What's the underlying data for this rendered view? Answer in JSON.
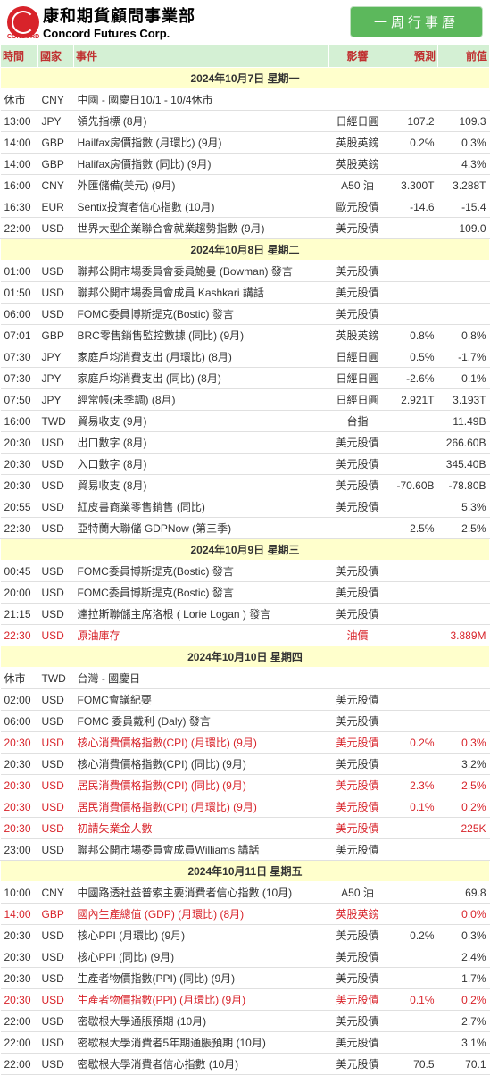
{
  "brand": {
    "cn": "康和期貨顧問事業部",
    "en": "Concord Futures Corp.",
    "sub": "CONCORD"
  },
  "badge": "一周行事曆",
  "columns": {
    "time": "時間",
    "country": "國家",
    "event": "事件",
    "impact": "影響",
    "forecast": "預測",
    "prev": "前值"
  },
  "sections": [
    {
      "date": "2024年10月7日  星期一",
      "rows": [
        {
          "t": "休市",
          "c": "CNY",
          "e": "中國 - 國慶日10/1 - 10/4休市",
          "i": "",
          "f": "",
          "p": ""
        },
        {
          "t": "13:00",
          "c": "JPY",
          "e": "領先指標 (8月)",
          "i": "日經日圓",
          "f": "107.2",
          "p": "109.3"
        },
        {
          "t": "14:00",
          "c": "GBP",
          "e": "Hailfax房價指數 (月環比) (9月)",
          "i": "英股英鎊",
          "f": "0.2%",
          "p": "0.3%"
        },
        {
          "t": "14:00",
          "c": "GBP",
          "e": "Halifax房價指數 (同比) (9月)",
          "i": "英股英鎊",
          "f": "",
          "p": "4.3%"
        },
        {
          "t": "16:00",
          "c": "CNY",
          "e": "外匯儲備(美元) (9月)",
          "i": "A50 油",
          "f": "3.300T",
          "p": "3.288T"
        },
        {
          "t": "16:30",
          "c": "EUR",
          "e": "Sentix投資者信心指數 (10月)",
          "i": "歐元股債",
          "f": "-14.6",
          "p": "-15.4"
        },
        {
          "t": "22:00",
          "c": "USD",
          "e": "世界大型企業聯合會就業趨勢指數 (9月)",
          "i": "美元股債",
          "f": "",
          "p": "109.0"
        }
      ]
    },
    {
      "date": "2024年10月8日  星期二",
      "rows": [
        {
          "t": "01:00",
          "c": "USD",
          "e": "聯邦公開市場委員會委員鮑曼 (Bowman) 發言",
          "i": "美元股債",
          "f": "",
          "p": ""
        },
        {
          "t": "01:50",
          "c": "USD",
          "e": "聯邦公開市場委員會成員 Kashkari 講話",
          "i": "美元股債",
          "f": "",
          "p": ""
        },
        {
          "t": "06:00",
          "c": "USD",
          "e": "FOMC委員博斯提克(Bostic) 發言",
          "i": "美元股債",
          "f": "",
          "p": ""
        },
        {
          "t": "07:01",
          "c": "GBP",
          "e": "BRC零售銷售監控數據 (同比) (9月)",
          "i": "英股英鎊",
          "f": "0.8%",
          "p": "0.8%"
        },
        {
          "t": "07:30",
          "c": "JPY",
          "e": "家庭戶均消費支出 (月環比) (8月)",
          "i": "日經日圓",
          "f": "0.5%",
          "p": "-1.7%"
        },
        {
          "t": "07:30",
          "c": "JPY",
          "e": "家庭戶均消費支出 (同比) (8月)",
          "i": "日經日圓",
          "f": "-2.6%",
          "p": "0.1%"
        },
        {
          "t": "07:50",
          "c": "JPY",
          "e": "經常帳(未季調) (8月)",
          "i": "日經日圓",
          "f": "2.921T",
          "p": "3.193T"
        },
        {
          "t": "16:00",
          "c": "TWD",
          "e": "貿易收支 (9月)",
          "i": "台指",
          "f": "",
          "p": "11.49B"
        },
        {
          "t": "20:30",
          "c": "USD",
          "e": "出口數字 (8月)",
          "i": "美元股債",
          "f": "",
          "p": "266.60B"
        },
        {
          "t": "20:30",
          "c": "USD",
          "e": "入口數字 (8月)",
          "i": "美元股債",
          "f": "",
          "p": "345.40B"
        },
        {
          "t": "20:30",
          "c": "USD",
          "e": "貿易收支 (8月)",
          "i": "美元股債",
          "f": "-70.60B",
          "p": "-78.80B"
        },
        {
          "t": "20:55",
          "c": "USD",
          "e": "紅皮書商業零售銷售 (同比)",
          "i": "美元股債",
          "f": "",
          "p": "5.3%"
        },
        {
          "t": "22:30",
          "c": "USD",
          "e": "亞特蘭大聯儲 GDPNow (第三季)",
          "i": "",
          "f": "2.5%",
          "p": "2.5%"
        }
      ]
    },
    {
      "date": "2024年10月9日  星期三",
      "rows": [
        {
          "t": "00:45",
          "c": "USD",
          "e": "FOMC委員博斯提克(Bostic) 發言",
          "i": "美元股債",
          "f": "",
          "p": ""
        },
        {
          "t": "20:00",
          "c": "USD",
          "e": "FOMC委員博斯提克(Bostic) 發言",
          "i": "美元股債",
          "f": "",
          "p": ""
        },
        {
          "t": "21:15",
          "c": "USD",
          "e": "達拉斯聯儲主席洛根 ( Lorie Logan ) 發言",
          "i": "美元股債",
          "f": "",
          "p": ""
        },
        {
          "t": "22:30",
          "c": "USD",
          "e": "原油庫存",
          "i": "油價",
          "f": "",
          "p": "3.889M",
          "hl": true
        }
      ]
    },
    {
      "date": "2024年10月10日  星期四",
      "rows": [
        {
          "t": "休市",
          "c": "TWD",
          "e": "台灣 - 國慶日",
          "i": "",
          "f": "",
          "p": ""
        },
        {
          "t": "02:00",
          "c": "USD",
          "e": "FOMC會議紀要",
          "i": "美元股債",
          "f": "",
          "p": ""
        },
        {
          "t": "06:00",
          "c": "USD",
          "e": "FOMC 委員戴利 (Daly) 發言",
          "i": "美元股債",
          "f": "",
          "p": ""
        },
        {
          "t": "20:30",
          "c": "USD",
          "e": "核心消費價格指數(CPI) (月環比) (9月)",
          "i": "美元股債",
          "f": "0.2%",
          "p": "0.3%",
          "hl": true
        },
        {
          "t": "20:30",
          "c": "USD",
          "e": "核心消費價格指數(CPI) (同比) (9月)",
          "i": "美元股債",
          "f": "",
          "p": "3.2%"
        },
        {
          "t": "20:30",
          "c": "USD",
          "e": "居民消費價格指數(CPI) (同比) (9月)",
          "i": "美元股債",
          "f": "2.3%",
          "p": "2.5%",
          "hl": true
        },
        {
          "t": "20:30",
          "c": "USD",
          "e": "居民消費價格指數(CPI) (月環比) (9月)",
          "i": "美元股債",
          "f": "0.1%",
          "p": "0.2%",
          "hl": true
        },
        {
          "t": "20:30",
          "c": "USD",
          "e": "初請失業金人數",
          "i": "美元股債",
          "f": "",
          "p": "225K",
          "hl": true
        },
        {
          "t": "23:00",
          "c": "USD",
          "e": "聯邦公開市場委員會成員Williams 講話",
          "i": "美元股債",
          "f": "",
          "p": ""
        }
      ]
    },
    {
      "date": "2024年10月11日  星期五",
      "rows": [
        {
          "t": "10:00",
          "c": "CNY",
          "e": "中國路透社益普索主要消費者信心指數 (10月)",
          "i": "A50 油",
          "f": "",
          "p": "69.8"
        },
        {
          "t": "14:00",
          "c": "GBP",
          "e": "國內生產總值 (GDP) (月環比) (8月)",
          "i": "英股英鎊",
          "f": "",
          "p": "0.0%",
          "hl": true
        },
        {
          "t": "20:30",
          "c": "USD",
          "e": "核心PPI (月環比) (9月)",
          "i": "美元股債",
          "f": "0.2%",
          "p": "0.3%"
        },
        {
          "t": "20:30",
          "c": "USD",
          "e": "核心PPI (同比) (9月)",
          "i": "美元股債",
          "f": "",
          "p": "2.4%"
        },
        {
          "t": "20:30",
          "c": "USD",
          "e": "生產者物價指數(PPI) (同比) (9月)",
          "i": "美元股債",
          "f": "",
          "p": "1.7%"
        },
        {
          "t": "20:30",
          "c": "USD",
          "e": "生產者物價指數(PPI) (月環比) (9月)",
          "i": "美元股債",
          "f": "0.1%",
          "p": "0.2%",
          "hl": true
        },
        {
          "t": "22:00",
          "c": "USD",
          "e": "密歇根大學通脹預期 (10月)",
          "i": "美元股債",
          "f": "",
          "p": "2.7%"
        },
        {
          "t": "22:00",
          "c": "USD",
          "e": "密歇根大學消費者5年期通脹預期 (10月)",
          "i": "美元股債",
          "f": "",
          "p": "3.1%"
        },
        {
          "t": "22:00",
          "c": "USD",
          "e": "密歇根大學消費者信心指數 (10月)",
          "i": "美元股債",
          "f": "70.5",
          "p": "70.1"
        }
      ]
    }
  ]
}
